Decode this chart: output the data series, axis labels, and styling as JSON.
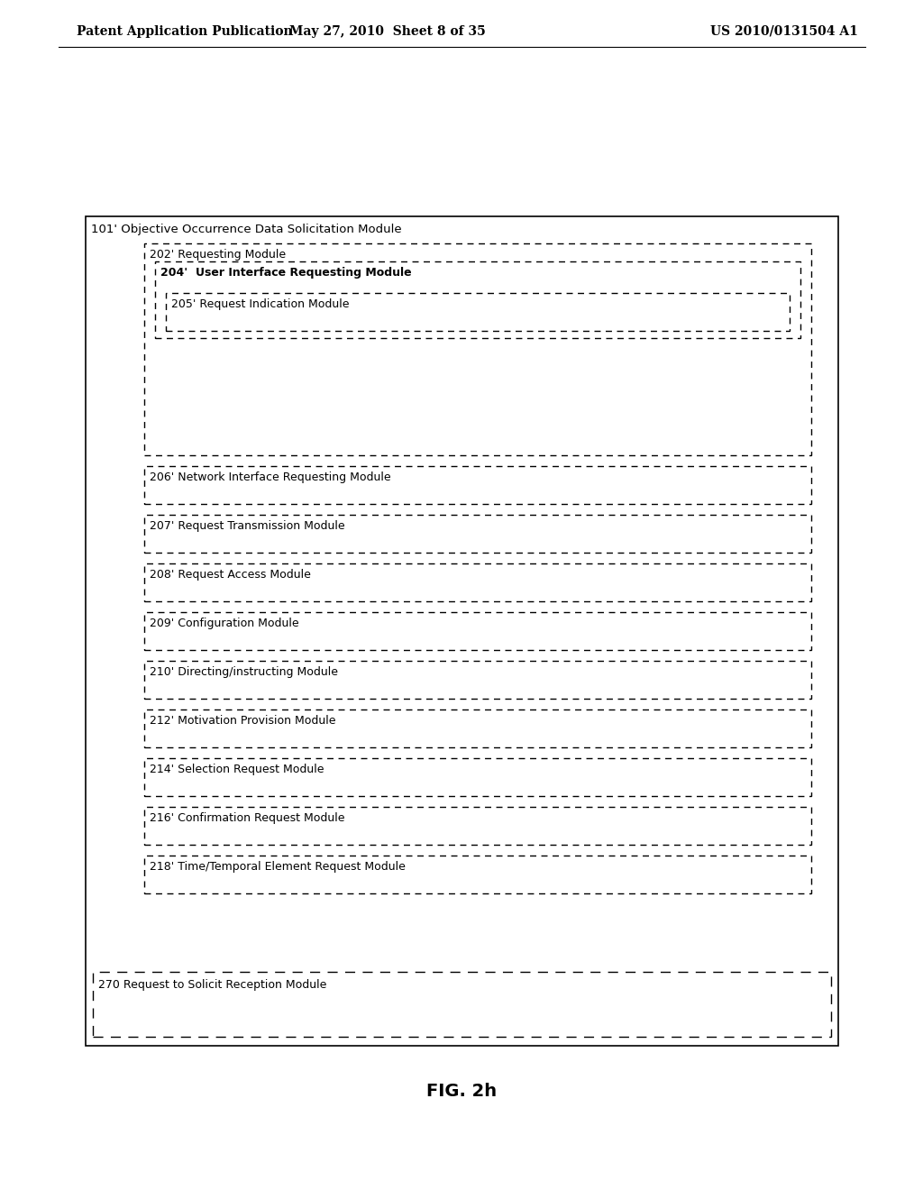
{
  "bg_color": "#ffffff",
  "header_left": "Patent Application Publication",
  "header_mid": "May 27, 2010  Sheet 8 of 35",
  "header_right": "US 2010/0131504 A1",
  "fig_label": "FIG. 2h",
  "outer_box_label": "101' Objective Occurrence Data Solicitation Module",
  "boxes": [
    {
      "label": "202' Requesting Module",
      "level": 1,
      "has_children": true,
      "children": [
        {
          "label": "204'  User Interface Requesting Module",
          "level": 2,
          "bold": true,
          "has_children": true,
          "children": [
            {
              "label": "205' Request Indication Module",
              "level": 3,
              "bold": false
            }
          ]
        }
      ]
    },
    {
      "label": "206' Network Interface Requesting Module",
      "level": 1,
      "bold": false
    },
    {
      "label": "207' Request Transmission Module",
      "level": 1,
      "bold": false
    },
    {
      "label": "208' Request Access Module",
      "level": 1,
      "bold": false
    },
    {
      "label": "209' Configuration Module",
      "level": 1,
      "bold": false
    },
    {
      "label": "210' Directing/instructing Module",
      "level": 1,
      "bold": false
    },
    {
      "label": "212' Motivation Provision Module",
      "level": 1,
      "bold": false
    },
    {
      "label": "214' Selection Request Module",
      "level": 1,
      "bold": false
    },
    {
      "label": "216' Confirmation Request Module",
      "level": 1,
      "bold": false
    },
    {
      "label": "218' Time/Temporal Element Request Module",
      "level": 1,
      "bold": false
    }
  ],
  "bottom_box_label": "270 Request to Solicit Reception Module"
}
